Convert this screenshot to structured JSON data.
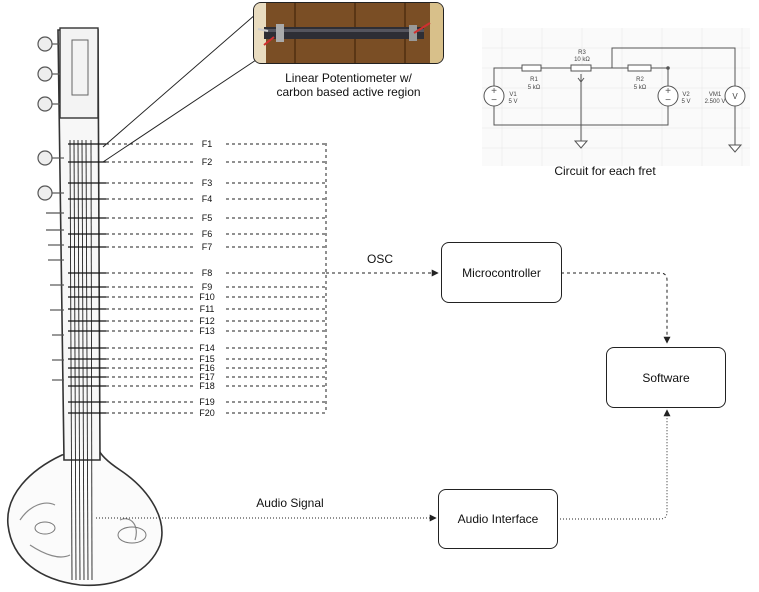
{
  "photo_caption": [
    "Linear Potentiometer w/",
    "carbon based active region"
  ],
  "circuit_caption": "Circuit for each fret",
  "circuit": {
    "r1_name": "R1",
    "r1_value": "5 kΩ",
    "r2_name": "R2",
    "r2_value": "5 kΩ",
    "r3_name": "R3",
    "r3_value": "10 kΩ",
    "v1_name": "V1",
    "v1_value": "5 V",
    "v2_name": "V2",
    "v2_value": "5 V",
    "vm1_name": "VM1",
    "vm1_value": "2.500 V",
    "meter_symbol": "V"
  },
  "frets": [
    "F1",
    "F2",
    "F3",
    "F4",
    "F5",
    "F6",
    "F7",
    "F8",
    "F9",
    "F10",
    "F11",
    "F12",
    "F13",
    "F14",
    "F15",
    "F16",
    "F17",
    "F18",
    "F19",
    "F20"
  ],
  "labels": {
    "osc": "OSC",
    "audio_signal": "Audio Signal"
  },
  "boxes": {
    "microcontroller": "Microcontroller",
    "software": "Software",
    "audio_interface": "Audio Interface"
  }
}
